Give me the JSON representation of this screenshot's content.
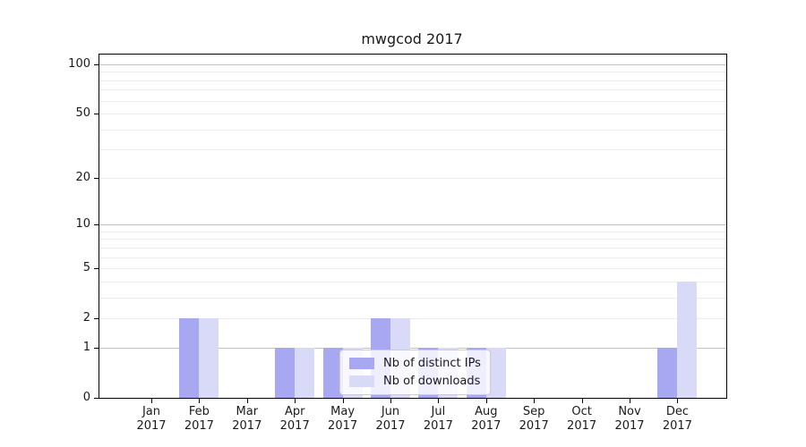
{
  "title": "mwgcod 2017",
  "colors": {
    "distinct_ips": "#a8a8f2",
    "downloads": "#d9d9f8",
    "grid_major": "#c2c2c2",
    "grid_minor": "#ededed",
    "axis": "#000000",
    "text": "#1a1a1a"
  },
  "legend": {
    "position": "lower center",
    "items": [
      {
        "label": "Nb of distinct IPs",
        "color": "#a8a8f2"
      },
      {
        "label": "Nb of downloads",
        "color": "#d9d9f8"
      }
    ]
  },
  "chart_data": {
    "type": "bar",
    "title": "mwgcod 2017",
    "categories": [
      "Jan 2017",
      "Feb 2017",
      "Mar 2017",
      "Apr 2017",
      "May 2017",
      "Jun 2017",
      "Jul 2017",
      "Aug 2017",
      "Sep 2017",
      "Oct 2017",
      "Nov 2017",
      "Dec 2017"
    ],
    "series": [
      {
        "name": "Nb of distinct IPs",
        "color": "#a8a8f2",
        "values": [
          0,
          2,
          0,
          1,
          1,
          2,
          1,
          1,
          0,
          0,
          0,
          1
        ]
      },
      {
        "name": "Nb of downloads",
        "color": "#d9d9f8",
        "values": [
          0,
          2,
          0,
          1,
          1,
          2,
          1,
          1,
          0,
          0,
          0,
          4
        ]
      }
    ],
    "xlabel": "",
    "ylabel": "",
    "yscale": "log1p",
    "ylim": [
      0,
      115
    ],
    "yticks": [
      0,
      1,
      2,
      5,
      10,
      20,
      50,
      100
    ],
    "grid_major_lines": [
      1,
      10,
      100
    ],
    "grid_minor_lines": [
      2,
      3,
      4,
      5,
      6,
      7,
      8,
      9,
      20,
      30,
      40,
      50,
      60,
      70,
      80,
      90
    ],
    "legend_position": "lower center",
    "grid": "horizontal"
  }
}
